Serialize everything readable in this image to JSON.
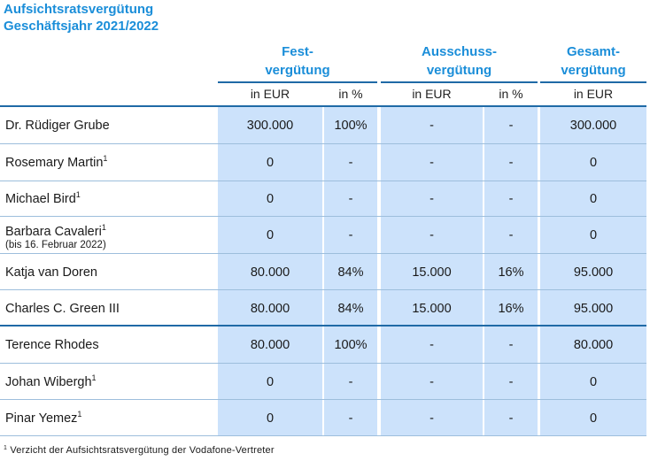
{
  "title_line1": "Aufsichtsratsvergütung",
  "title_line2": "Geschäftsjahr 2021/2022",
  "groups": [
    {
      "line1": "Fest-",
      "line2": "vergütung"
    },
    {
      "line1": "Ausschuss-",
      "line2": "vergütung"
    },
    {
      "line1": "Gesamt-",
      "line2": "vergütung"
    }
  ],
  "subheaders": [
    "in EUR",
    "in %",
    "in EUR",
    "in %",
    "in EUR"
  ],
  "rows": [
    {
      "name": "Dr. Rüdiger Grube",
      "sup": "",
      "note": "",
      "values": [
        "300.000",
        "100%",
        "-",
        "-",
        "300.000"
      ]
    },
    {
      "name": "Rosemary Martin",
      "sup": "1",
      "note": "",
      "values": [
        "0",
        "-",
        "-",
        "-",
        "0"
      ]
    },
    {
      "name": "Michael Bird",
      "sup": "1",
      "note": "",
      "values": [
        "0",
        "-",
        "-",
        "-",
        "0"
      ]
    },
    {
      "name": "Barbara Cavaleri",
      "sup": "1",
      "note": "(bis 16. Februar 2022)",
      "values": [
        "0",
        "-",
        "-",
        "-",
        "0"
      ]
    },
    {
      "name": "Katja van Doren",
      "sup": "",
      "note": "",
      "values": [
        "80.000",
        "84%",
        "15.000",
        "16%",
        "95.000"
      ]
    },
    {
      "name": "Charles C. Green III",
      "sup": "",
      "note": "",
      "values": [
        "80.000",
        "84%",
        "15.000",
        "16%",
        "95.000"
      ]
    },
    {
      "name": "Terence Rhodes",
      "sup": "",
      "note": "",
      "values": [
        "80.000",
        "100%",
        "-",
        "-",
        "80.000"
      ]
    },
    {
      "name": "Johan Wibergh",
      "sup": "1",
      "note": "",
      "values": [
        "0",
        "-",
        "-",
        "-",
        "0"
      ]
    },
    {
      "name": "Pinar Yemez",
      "sup": "1",
      "note": "",
      "values": [
        "0",
        "-",
        "-",
        "-",
        "0"
      ]
    }
  ],
  "footnote_sup": "1",
  "footnote_text": "Verzicht der Aufsichtsratsvergütung der Vodafone-Vertreter"
}
